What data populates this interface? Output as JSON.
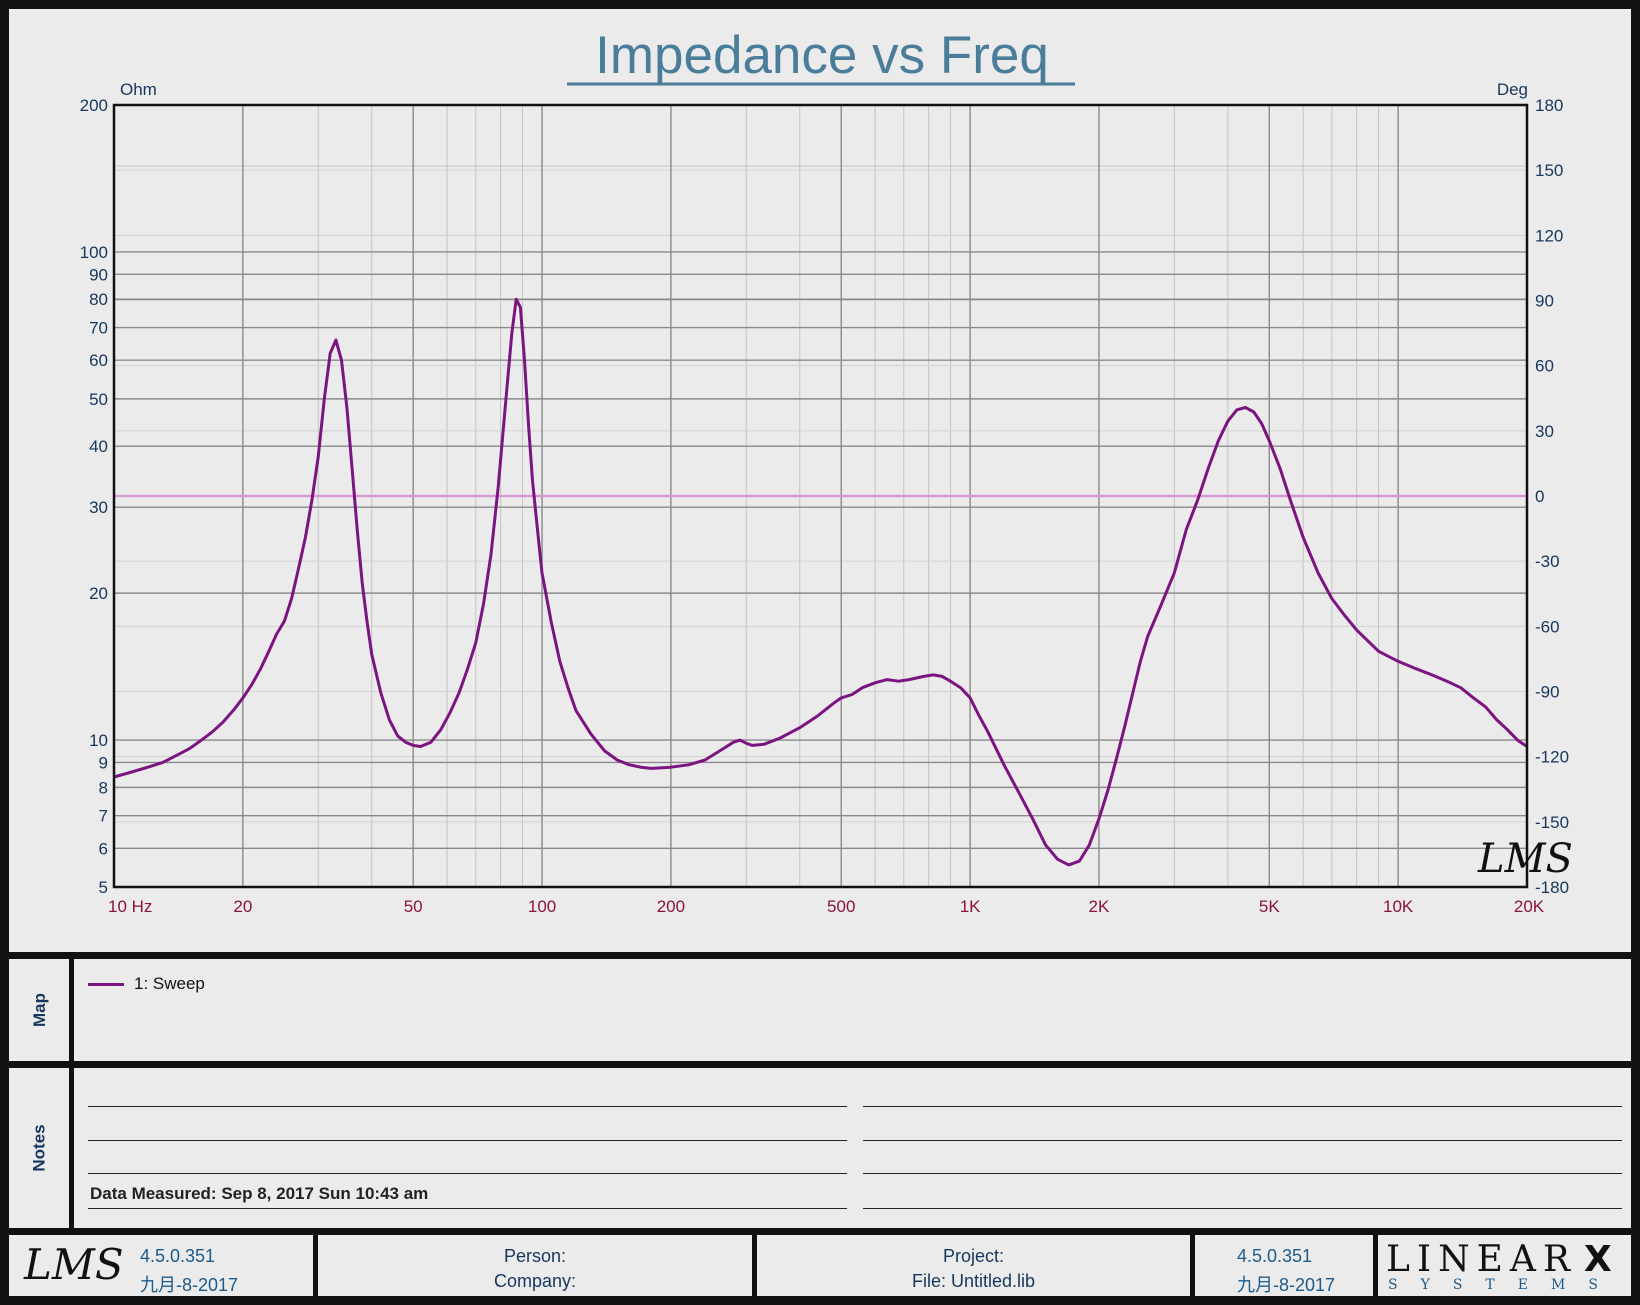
{
  "chart_data": {
    "type": "line",
    "title": "Impedance vs Freq",
    "y_left_unit": "Ohm",
    "y_right_unit": "Deg",
    "x_scale": "log",
    "y_left_scale": "log",
    "xlim": [
      10,
      20000
    ],
    "ylim_left": [
      5,
      200
    ],
    "ylim_right": [
      -180,
      180
    ],
    "x_ticks": [
      {
        "v": 10,
        "label": "10  Hz"
      },
      {
        "v": 20,
        "label": "20"
      },
      {
        "v": 50,
        "label": "50"
      },
      {
        "v": 100,
        "label": "100"
      },
      {
        "v": 200,
        "label": "200"
      },
      {
        "v": 500,
        "label": "500"
      },
      {
        "v": 1000,
        "label": "1K"
      },
      {
        "v": 2000,
        "label": "2K"
      },
      {
        "v": 5000,
        "label": "5K"
      },
      {
        "v": 10000,
        "label": "10K"
      },
      {
        "v": 20000,
        "label": "20K"
      }
    ],
    "y_left_ticks": [
      {
        "v": 200,
        "label": "200"
      },
      {
        "v": 100,
        "label": "100"
      },
      {
        "v": 90,
        "label": "90"
      },
      {
        "v": 80,
        "label": "80"
      },
      {
        "v": 70,
        "label": "70"
      },
      {
        "v": 60,
        "label": "60"
      },
      {
        "v": 50,
        "label": "50"
      },
      {
        "v": 40,
        "label": "40"
      },
      {
        "v": 30,
        "label": "30"
      },
      {
        "v": 20,
        "label": "20"
      },
      {
        "v": 10,
        "label": "10"
      },
      {
        "v": 9,
        "label": "9"
      },
      {
        "v": 8,
        "label": "8"
      },
      {
        "v": 7,
        "label": "7"
      },
      {
        "v": 6,
        "label": "6"
      },
      {
        "v": 5,
        "label": "5"
      }
    ],
    "y_right_ticks": [
      {
        "v": 180,
        "label": "180"
      },
      {
        "v": 150,
        "label": "150"
      },
      {
        "v": 120,
        "label": "120"
      },
      {
        "v": 90,
        "label": "90"
      },
      {
        "v": 60,
        "label": "60"
      },
      {
        "v": 30,
        "label": "30"
      },
      {
        "v": 0,
        "label": "0"
      },
      {
        "v": -30,
        "label": "-30"
      },
      {
        "v": -60,
        "label": "-60"
      },
      {
        "v": -90,
        "label": "-90"
      },
      {
        "v": -120,
        "label": "-120"
      },
      {
        "v": -150,
        "label": "-150"
      },
      {
        "v": -180,
        "label": "-180"
      }
    ],
    "grid": true,
    "series": [
      {
        "name": "1: Sweep",
        "axis": "left",
        "color": "#7b1480",
        "points": [
          [
            10,
            8.4
          ],
          [
            11,
            8.6
          ],
          [
            12,
            8.8
          ],
          [
            13,
            9.0
          ],
          [
            14,
            9.3
          ],
          [
            15,
            9.6
          ],
          [
            16,
            10.0
          ],
          [
            17,
            10.4
          ],
          [
            18,
            10.9
          ],
          [
            19,
            11.5
          ],
          [
            20,
            12.2
          ],
          [
            21,
            13.0
          ],
          [
            22,
            14.0
          ],
          [
            23,
            15.2
          ],
          [
            24,
            16.5
          ],
          [
            25,
            17.5
          ],
          [
            26,
            19.5
          ],
          [
            27,
            22.5
          ],
          [
            28,
            26.0
          ],
          [
            29,
            31.0
          ],
          [
            30,
            38.0
          ],
          [
            31,
            50.0
          ],
          [
            32,
            62.0
          ],
          [
            33,
            66.0
          ],
          [
            34,
            60.0
          ],
          [
            35,
            48.0
          ],
          [
            36,
            36.0
          ],
          [
            37,
            27.0
          ],
          [
            38,
            21.0
          ],
          [
            39,
            17.5
          ],
          [
            40,
            15.0
          ],
          [
            42,
            12.5
          ],
          [
            44,
            11.0
          ],
          [
            46,
            10.2
          ],
          [
            48,
            9.9
          ],
          [
            50,
            9.75
          ],
          [
            52,
            9.7
          ],
          [
            55,
            9.9
          ],
          [
            58,
            10.5
          ],
          [
            61,
            11.4
          ],
          [
            64,
            12.5
          ],
          [
            67,
            14.0
          ],
          [
            70,
            15.8
          ],
          [
            73,
            19.0
          ],
          [
            76,
            24.0
          ],
          [
            79,
            33.0
          ],
          [
            82,
            48.0
          ],
          [
            85,
            68.0
          ],
          [
            87,
            80.0
          ],
          [
            89,
            77.0
          ],
          [
            91,
            60.0
          ],
          [
            93,
            44.0
          ],
          [
            95,
            34.0
          ],
          [
            98,
            26.0
          ],
          [
            100,
            22.0
          ],
          [
            105,
            17.5
          ],
          [
            110,
            14.5
          ],
          [
            115,
            12.8
          ],
          [
            120,
            11.5
          ],
          [
            130,
            10.3
          ],
          [
            140,
            9.5
          ],
          [
            150,
            9.1
          ],
          [
            160,
            8.9
          ],
          [
            170,
            8.8
          ],
          [
            180,
            8.75
          ],
          [
            200,
            8.8
          ],
          [
            220,
            8.9
          ],
          [
            240,
            9.1
          ],
          [
            260,
            9.5
          ],
          [
            280,
            9.9
          ],
          [
            290,
            10.0
          ],
          [
            300,
            9.85
          ],
          [
            310,
            9.75
          ],
          [
            330,
            9.8
          ],
          [
            360,
            10.1
          ],
          [
            400,
            10.6
          ],
          [
            440,
            11.2
          ],
          [
            480,
            11.9
          ],
          [
            500,
            12.2
          ],
          [
            530,
            12.4
          ],
          [
            560,
            12.8
          ],
          [
            600,
            13.1
          ],
          [
            640,
            13.3
          ],
          [
            680,
            13.2
          ],
          [
            720,
            13.3
          ],
          [
            780,
            13.5
          ],
          [
            820,
            13.6
          ],
          [
            860,
            13.5
          ],
          [
            900,
            13.2
          ],
          [
            950,
            12.8
          ],
          [
            1000,
            12.2
          ],
          [
            1050,
            11.2
          ],
          [
            1100,
            10.4
          ],
          [
            1150,
            9.6
          ],
          [
            1200,
            8.9
          ],
          [
            1300,
            7.8
          ],
          [
            1400,
            6.9
          ],
          [
            1500,
            6.1
          ],
          [
            1600,
            5.7
          ],
          [
            1700,
            5.55
          ],
          [
            1800,
            5.65
          ],
          [
            1900,
            6.1
          ],
          [
            2000,
            6.9
          ],
          [
            2100,
            7.9
          ],
          [
            2200,
            9.2
          ],
          [
            2300,
            10.7
          ],
          [
            2400,
            12.5
          ],
          [
            2500,
            14.5
          ],
          [
            2600,
            16.3
          ],
          [
            2800,
            19.0
          ],
          [
            3000,
            22.0
          ],
          [
            3200,
            27.0
          ],
          [
            3400,
            31.0
          ],
          [
            3600,
            36.0
          ],
          [
            3800,
            41.0
          ],
          [
            4000,
            45.0
          ],
          [
            4200,
            47.5
          ],
          [
            4400,
            48.0
          ],
          [
            4600,
            47.0
          ],
          [
            4800,
            44.5
          ],
          [
            5000,
            41.0
          ],
          [
            5300,
            36.0
          ],
          [
            5600,
            31.0
          ],
          [
            6000,
            26.0
          ],
          [
            6500,
            22.0
          ],
          [
            7000,
            19.5
          ],
          [
            7500,
            18.0
          ],
          [
            8000,
            16.8
          ],
          [
            9000,
            15.2
          ],
          [
            10000,
            14.5
          ],
          [
            11000,
            14.0
          ],
          [
            12000,
            13.6
          ],
          [
            13000,
            13.2
          ],
          [
            14000,
            12.8
          ],
          [
            15000,
            12.2
          ],
          [
            16000,
            11.7
          ],
          [
            17000,
            11.0
          ],
          [
            18000,
            10.5
          ],
          [
            19000,
            10.0
          ],
          [
            20000,
            9.7
          ]
        ]
      },
      {
        "name": "phase",
        "axis": "right",
        "color": "#d59bd8",
        "points": [
          [
            10,
            0
          ],
          [
            20000,
            0
          ]
        ]
      }
    ]
  },
  "legend": {
    "section_label": "Map",
    "entry": "1: Sweep",
    "color": "#7b1480"
  },
  "notes": {
    "section_label": "Notes",
    "data_measured": "Data Measured: Sep 8, 2017 Sun 10:43 am"
  },
  "watermark": "LMS",
  "footer": {
    "logo": "LMS",
    "version_left": "4.5.0.351",
    "date_left": "九月-8-2017",
    "person_label": "Person:",
    "company_label": "Company:",
    "project_label": "Project:",
    "file_label": "File: Untitled.lib",
    "version_right": "4.5.0.351",
    "date_right": "九月-8-2017",
    "brand_top": "LINEAR",
    "brand_x": "X",
    "brand_bottom": "SYSTEMS"
  },
  "colors": {
    "tick_blue": "#17365d",
    "tick_red": "#8b1438",
    "title_blue": "#4a7d9a",
    "curve": "#7b1480",
    "phase": "#d59bd8"
  }
}
